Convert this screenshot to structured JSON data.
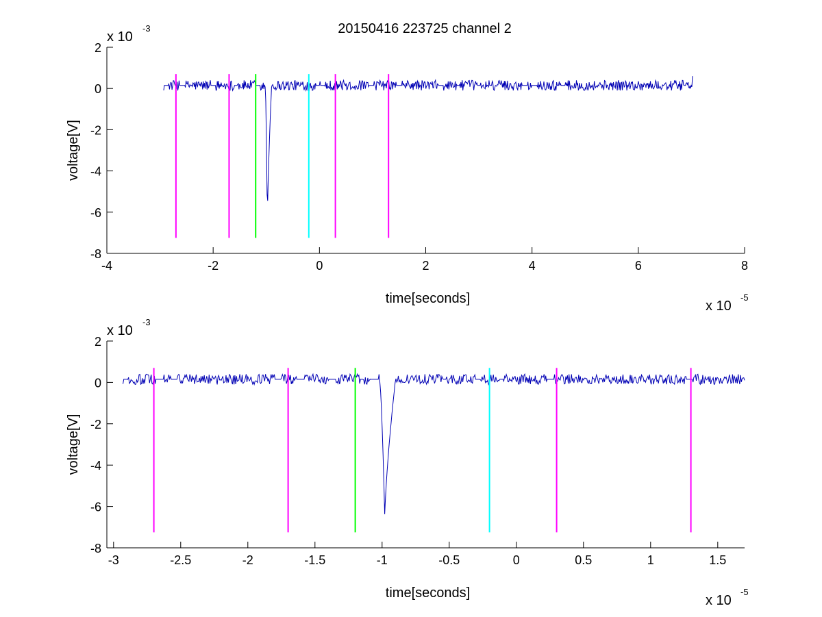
{
  "figure": {
    "title": "20150416 223725 channel 2"
  },
  "colors": {
    "signal": "#0000b4",
    "magenta": "#ff00ff",
    "green": "#00ff00",
    "cyan": "#00ffff",
    "axis": "#000000",
    "background": "#ffffff"
  },
  "chart_data": [
    {
      "type": "line",
      "title": "20150416 223725 channel 2",
      "xlabel": "time[seconds]",
      "ylabel": "voltage[V]",
      "x_multiplier": "x 10",
      "x_exponent": "-5",
      "y_multiplier": "x 10",
      "y_exponent": "-3",
      "xlim": [
        -4,
        8
      ],
      "ylim": [
        -8,
        2
      ],
      "xticks": [
        -4,
        -2,
        0,
        2,
        4,
        6,
        8
      ],
      "xtick_labels": [
        "-4",
        "-2",
        "0",
        "2",
        "4",
        "6",
        "8"
      ],
      "yticks": [
        -8,
        -6,
        -4,
        -2,
        0,
        2
      ],
      "ytick_labels": [
        "-8",
        "-6",
        "-4",
        "-2",
        "0",
        "2"
      ],
      "grid": false,
      "signal": {
        "x_start": -2.93,
        "x_end": 7.02,
        "baseline": 0.15,
        "noise_amplitude": 0.25,
        "pulse_start": -1.02,
        "pulse_min_x": -0.98,
        "pulse_min_y": -6.6,
        "pulse_end": -0.9,
        "end_value": 0.6
      },
      "markers": [
        {
          "x": -2.7,
          "y_top": 0.7,
          "y_bottom": -7.25,
          "color": "magenta"
        },
        {
          "x": -1.7,
          "y_top": 0.7,
          "y_bottom": -7.25,
          "color": "magenta"
        },
        {
          "x": -1.2,
          "y_top": 0.7,
          "y_bottom": -7.25,
          "color": "green"
        },
        {
          "x": -0.2,
          "y_top": 0.7,
          "y_bottom": -7.25,
          "color": "cyan"
        },
        {
          "x": 0.3,
          "y_top": 0.7,
          "y_bottom": -7.25,
          "color": "magenta"
        },
        {
          "x": 1.3,
          "y_top": 0.7,
          "y_bottom": -7.25,
          "color": "magenta"
        }
      ]
    },
    {
      "type": "line",
      "title": "",
      "xlabel": "time[seconds]",
      "ylabel": "voltage[V]",
      "x_multiplier": "x 10",
      "x_exponent": "-5",
      "y_multiplier": "x 10",
      "y_exponent": "-3",
      "xlim": [
        -3.05,
        1.7
      ],
      "ylim": [
        -8,
        2
      ],
      "xticks": [
        -3,
        -2.5,
        -2,
        -1.5,
        -1,
        -0.5,
        0,
        0.5,
        1,
        1.5
      ],
      "xtick_labels": [
        "-3",
        "-2.5",
        "-2",
        "-1.5",
        "-1",
        "-0.5",
        "0",
        "0.5",
        "1",
        "1.5"
      ],
      "yticks": [
        -8,
        -6,
        -4,
        -2,
        0,
        2
      ],
      "ytick_labels": [
        "-8",
        "-6",
        "-4",
        "-2",
        "0",
        "2"
      ],
      "grid": false,
      "signal": {
        "x_start": -2.93,
        "x_end": 1.7,
        "baseline": 0.15,
        "noise_amplitude": 0.25,
        "pulse_start": -1.02,
        "pulse_min_x": -0.98,
        "pulse_min_y": -6.6,
        "pulse_end": -0.9,
        "end_value": 0.1
      },
      "markers": [
        {
          "x": -2.7,
          "y_top": 0.7,
          "y_bottom": -7.25,
          "color": "magenta"
        },
        {
          "x": -1.7,
          "y_top": 0.7,
          "y_bottom": -7.25,
          "color": "magenta"
        },
        {
          "x": -1.2,
          "y_top": 0.7,
          "y_bottom": -7.25,
          "color": "green"
        },
        {
          "x": -0.2,
          "y_top": 0.7,
          "y_bottom": -7.25,
          "color": "cyan"
        },
        {
          "x": 0.3,
          "y_top": 0.7,
          "y_bottom": -7.25,
          "color": "magenta"
        },
        {
          "x": 1.3,
          "y_top": 0.7,
          "y_bottom": -7.25,
          "color": "magenta"
        }
      ]
    }
  ]
}
